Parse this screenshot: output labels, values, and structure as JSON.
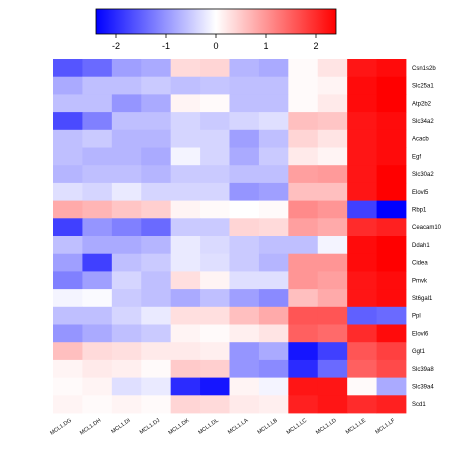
{
  "chart_data": {
    "type": "heatmap",
    "title": "",
    "colorbar": {
      "min": -2.4,
      "max": 2.4,
      "ticks": [
        -2,
        -1,
        0,
        1,
        2
      ],
      "tick_labels": [
        "-2",
        "-1",
        "0",
        "1",
        "2"
      ],
      "colors": {
        "low": "#0000ff",
        "mid": "#ffffff",
        "high": "#ff0000"
      }
    },
    "rows": [
      "Csn1s2b",
      "Slc25a1",
      "Atp2b2",
      "Slc34a2",
      "Acacb",
      "Egf",
      "Slc30a2",
      "Elovl5",
      "Rbp1",
      "Ceacam10",
      "Ddah1",
      "Cidea",
      "Pmvk",
      "St6gal1",
      "Ppl",
      "Elovl6",
      "Ggt1",
      "Slc39a8",
      "Slc39a4",
      "Scd1"
    ],
    "columns": [
      "MCL1.DG",
      "MCL1.DH",
      "MCL1.DI",
      "MCL1.DJ",
      "MCL1.DK",
      "MCL1.DL",
      "MCL1.LA",
      "MCL1.LB",
      "MCL1.LC",
      "MCL1.LD",
      "MCL1.LE",
      "MCL1.LF"
    ],
    "values": [
      [
        -1.6,
        -1.4,
        -0.9,
        -0.8,
        0.35,
        0.4,
        -0.7,
        -0.8,
        0.05,
        0.25,
        2.2,
        2.3
      ],
      [
        -0.8,
        -0.6,
        -0.6,
        -0.5,
        -0.6,
        -0.55,
        -0.6,
        -0.6,
        0.05,
        0.1,
        2.3,
        2.4
      ],
      [
        -0.6,
        -0.6,
        -1.0,
        -0.8,
        0.1,
        0.05,
        -0.6,
        -0.6,
        0.05,
        0.2,
        2.3,
        2.4
      ],
      [
        -1.7,
        -1.2,
        -0.6,
        -0.6,
        -0.4,
        -0.5,
        -0.4,
        -0.3,
        0.6,
        0.55,
        2.2,
        2.3
      ],
      [
        -0.6,
        -0.5,
        -0.7,
        -0.7,
        -0.4,
        -0.4,
        -0.9,
        -0.6,
        0.4,
        0.25,
        2.2,
        2.3
      ],
      [
        -0.6,
        -0.7,
        -0.7,
        -0.8,
        -0.1,
        -0.4,
        -0.8,
        -0.5,
        0.2,
        0.1,
        2.2,
        2.3
      ],
      [
        -0.7,
        -0.6,
        -0.6,
        -0.7,
        -0.5,
        -0.5,
        -0.6,
        -0.6,
        0.9,
        0.95,
        2.2,
        2.4
      ],
      [
        -0.3,
        -0.4,
        -0.2,
        -0.4,
        -0.4,
        -0.4,
        -1.0,
        -0.9,
        0.6,
        0.6,
        2.2,
        2.4
      ],
      [
        0.8,
        0.7,
        0.55,
        0.45,
        0.1,
        0.05,
        0.0,
        0.05,
        1.1,
        1.0,
        -1.8,
        -2.4
      ],
      [
        -1.8,
        -1.0,
        -1.2,
        -1.4,
        -0.5,
        -0.5,
        0.4,
        0.35,
        0.9,
        0.8,
        2.0,
        2.1
      ],
      [
        -0.6,
        -0.8,
        -0.8,
        -0.7,
        -0.2,
        -0.35,
        -0.5,
        -0.6,
        -0.6,
        -0.1,
        2.3,
        2.4
      ],
      [
        -0.9,
        -1.8,
        -0.6,
        -0.5,
        -0.2,
        -0.3,
        -0.5,
        -0.7,
        1.0,
        1.0,
        2.3,
        2.4
      ],
      [
        -1.2,
        -0.9,
        -0.4,
        -0.6,
        0.3,
        0.1,
        -0.3,
        -0.3,
        1.0,
        0.9,
        2.2,
        2.3
      ],
      [
        -0.1,
        -0.05,
        -0.5,
        -0.6,
        -0.8,
        -0.6,
        -0.9,
        -1.1,
        0.6,
        0.8,
        2.2,
        2.3
      ],
      [
        -0.6,
        -0.6,
        -0.4,
        -0.2,
        0.3,
        0.3,
        0.6,
        0.8,
        1.6,
        1.6,
        -1.5,
        -1.4
      ],
      [
        -1.0,
        -0.8,
        -0.6,
        -0.5,
        0.1,
        0.05,
        0.15,
        0.25,
        1.5,
        1.4,
        2.0,
        2.3
      ],
      [
        0.6,
        0.35,
        0.3,
        0.2,
        0.2,
        0.15,
        -1.0,
        -0.8,
        -2.2,
        -1.8,
        1.6,
        1.8
      ],
      [
        0.1,
        0.2,
        0.15,
        0.05,
        0.5,
        0.45,
        -1.0,
        -1.1,
        -2.0,
        -1.4,
        1.5,
        1.7
      ],
      [
        0.05,
        0.1,
        -0.3,
        -0.2,
        -2.0,
        -2.2,
        0.1,
        -0.1,
        2.2,
        2.2,
        0.05,
        -0.8
      ],
      [
        0.1,
        0.05,
        0.1,
        0.05,
        0.4,
        0.35,
        0.2,
        0.15,
        2.1,
        2.2,
        2.0,
        2.1
      ]
    ]
  }
}
